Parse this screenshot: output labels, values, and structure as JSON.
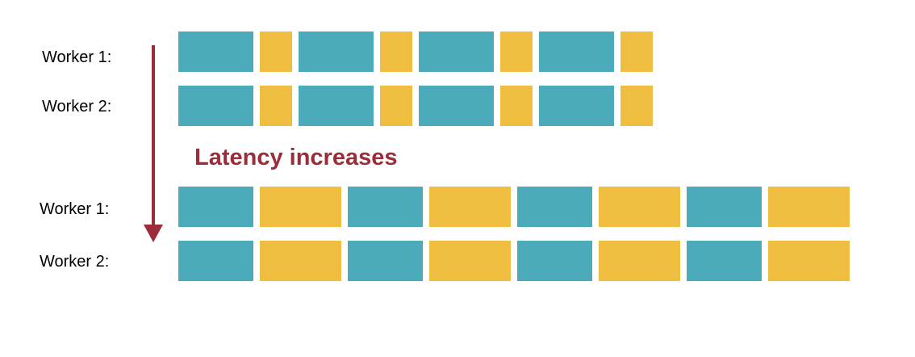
{
  "colors": {
    "compute": "#4cabba",
    "communication": "#efbd40",
    "arrow": "#9b2d3a",
    "label": "#000000"
  },
  "annotation": {
    "text": "Latency increases"
  },
  "scenarios": [
    {
      "name": "low-latency",
      "rows": [
        {
          "label": "Worker 1:",
          "blocks": [
            {
              "kind": "compute",
              "duration": 93
            },
            {
              "kind": "communication",
              "duration": 40
            },
            {
              "kind": "compute",
              "duration": 93
            },
            {
              "kind": "communication",
              "duration": 40
            },
            {
              "kind": "compute",
              "duration": 93
            },
            {
              "kind": "communication",
              "duration": 40
            },
            {
              "kind": "compute",
              "duration": 93
            },
            {
              "kind": "communication",
              "duration": 40
            }
          ]
        },
        {
          "label": "Worker 2:",
          "blocks": [
            {
              "kind": "compute",
              "duration": 93
            },
            {
              "kind": "communication",
              "duration": 40
            },
            {
              "kind": "compute",
              "duration": 93
            },
            {
              "kind": "communication",
              "duration": 40
            },
            {
              "kind": "compute",
              "duration": 93
            },
            {
              "kind": "communication",
              "duration": 40
            },
            {
              "kind": "compute",
              "duration": 93
            },
            {
              "kind": "communication",
              "duration": 40
            }
          ]
        }
      ]
    },
    {
      "name": "high-latency",
      "rows": [
        {
          "label": "Worker 1:",
          "blocks": [
            {
              "kind": "compute",
              "duration": 93
            },
            {
              "kind": "communication",
              "duration": 101
            },
            {
              "kind": "compute",
              "duration": 93
            },
            {
              "kind": "communication",
              "duration": 101
            },
            {
              "kind": "compute",
              "duration": 93
            },
            {
              "kind": "communication",
              "duration": 101
            },
            {
              "kind": "compute",
              "duration": 93
            },
            {
              "kind": "communication",
              "duration": 101
            }
          ]
        },
        {
          "label": "Worker 2:",
          "blocks": [
            {
              "kind": "compute",
              "duration": 93
            },
            {
              "kind": "communication",
              "duration": 101
            },
            {
              "kind": "compute",
              "duration": 93
            },
            {
              "kind": "communication",
              "duration": 101
            },
            {
              "kind": "compute",
              "duration": 93
            },
            {
              "kind": "communication",
              "duration": 101
            },
            {
              "kind": "compute",
              "duration": 93
            },
            {
              "kind": "communication",
              "duration": 101
            }
          ]
        }
      ]
    }
  ]
}
